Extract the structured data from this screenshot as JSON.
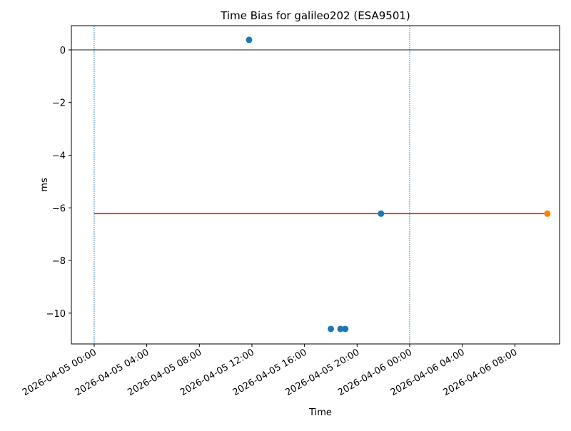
{
  "chart_data": {
    "type": "scatter",
    "title": "Time Bias for galileo202 (ESA9501)",
    "x_label": "Time",
    "y_label": "ms",
    "xlim": [
      "2026-04-04 22:16",
      "2026-04-06 11:24"
    ],
    "xticks": [
      "2026-04-05 00:00",
      "2026-04-05 04:00",
      "2026-04-05 08:00",
      "2026-04-05 12:00",
      "2026-04-05 16:00",
      "2026-04-05 20:00",
      "2026-04-06 00:00",
      "2026-04-06 04:00",
      "2026-04-06 08:00"
    ],
    "ylim": [
      -11.17,
      0.92
    ],
    "yticks": [
      {
        "value": -10,
        "label": "−10"
      },
      {
        "value": -8,
        "label": "−8"
      },
      {
        "value": -6,
        "label": "−6"
      },
      {
        "value": -4,
        "label": "−4"
      },
      {
        "value": -2,
        "label": "−2"
      },
      0
    ],
    "series": [
      {
        "color": "#1f77b4",
        "x": [
          "2026-04-05 11:47",
          "2026-04-05 18:00",
          "2026-04-05 18:44",
          "2026-04-05 19:06",
          "2026-04-05 21:49"
        ],
        "values": [
          0.38,
          -10.6,
          -10.6,
          -10.6,
          -6.22
        ]
      },
      {
        "color": "#ff7f0e",
        "x": [
          "2026-04-06 10:28"
        ],
        "values": [
          -6.22
        ]
      }
    ],
    "mean_line": {
      "color": "#e8190e",
      "x": [
        "2026-04-05 00:00",
        "2026-04-06 10:28"
      ],
      "value": -6.22
    },
    "zero_line": 0,
    "day_lines": [
      "2026-04-05 00:00",
      "2026-04-06 00:00"
    ]
  }
}
